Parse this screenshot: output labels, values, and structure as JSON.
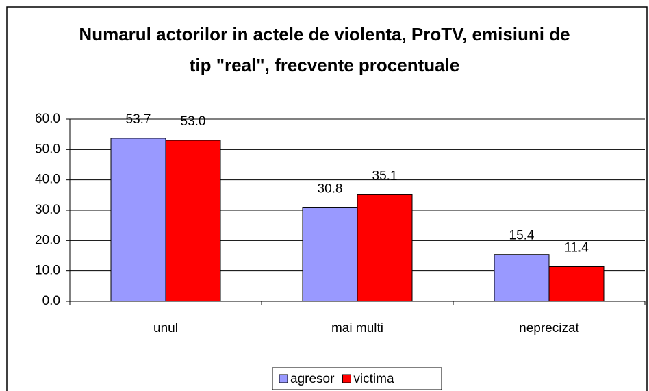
{
  "chart_data": {
    "type": "bar",
    "title": "Numarul actorilor in actele de violenta, ProTV, emisiuni de tip \"real\", frecvente procentuale",
    "categories": [
      "unul",
      "mai multi",
      "neprecizat"
    ],
    "series": [
      {
        "name": "agresor",
        "color": "#9999ff",
        "values": [
          53.7,
          30.8,
          15.4
        ],
        "value_labels": [
          "53.7",
          "30.8",
          "15.4"
        ]
      },
      {
        "name": "victima",
        "color": "#ff0000",
        "values": [
          53.0,
          35.1,
          11.4
        ],
        "value_labels": [
          "53.0",
          "35.1",
          "11.4"
        ]
      }
    ],
    "ylim": [
      0,
      60
    ],
    "yticks": [
      {
        "value": 0,
        "label": "0.0"
      },
      {
        "value": 10,
        "label": "10.0"
      },
      {
        "value": 20,
        "label": "20.0"
      },
      {
        "value": 30,
        "label": "30.0"
      },
      {
        "value": 40,
        "label": "40.0"
      },
      {
        "value": 50,
        "label": "50.0"
      },
      {
        "value": 60,
        "label": "60.0"
      }
    ],
    "grid": true,
    "legend": "bottom"
  }
}
